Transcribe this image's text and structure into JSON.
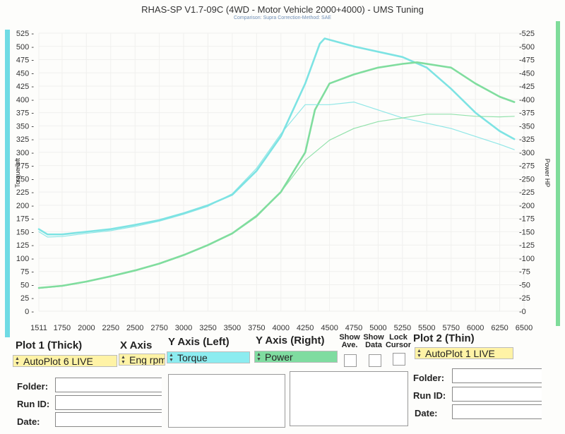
{
  "header": {
    "title": "RHAS-SP V1.7-09C  (4WD - Motor Vehicle 2000+4000) - UMS Tuning",
    "subtitle": "Comparison: Supra    Correction-Method: SAE"
  },
  "colors": {
    "torque": "#7de3e3",
    "power": "#80dd9e",
    "torque_sel": "#8cecf0",
    "power_sel": "#7fdca0",
    "autoplot_sel": "#fff3a6"
  },
  "chart_data": {
    "type": "line",
    "title": "RHAS-SP V1.7-09C  (4WD - Motor Vehicle 2000+4000) - UMS Tuning",
    "xlabel": "",
    "ylabel": "Torque lbft",
    "y2label": "Power HP",
    "xlim": [
      1511,
      6500
    ],
    "ylim": [
      0,
      525
    ],
    "y2lim": [
      0,
      525
    ],
    "x_ticks": [
      "1511",
      "1750",
      "2000",
      "2250",
      "2500",
      "2750",
      "3000",
      "3250",
      "3500",
      "3750",
      "4000",
      "4250",
      "4500",
      "4750",
      "5000",
      "5250",
      "5500",
      "5750",
      "6000",
      "6250",
      "6500"
    ],
    "y_ticks": [
      "0",
      "25",
      "50",
      "75",
      "100",
      "125",
      "150",
      "175",
      "200",
      "225",
      "250",
      "275",
      "300",
      "325",
      "350",
      "375",
      "400",
      "425",
      "450",
      "475",
      "500",
      "525"
    ],
    "y2_ticks": [
      "0",
      "25",
      "50",
      "75",
      "100",
      "125",
      "150",
      "175",
      "200",
      "225",
      "250",
      "275",
      "300",
      "325",
      "350",
      "375",
      "400",
      "425",
      "450",
      "475",
      "500",
      "525"
    ],
    "grid": true,
    "series": [
      {
        "name": "Torque",
        "axis": "left",
        "style": "thick",
        "x": [
          1511,
          1600,
          1750,
          2000,
          2250,
          2500,
          2750,
          3000,
          3250,
          3500,
          3750,
          4000,
          4250,
          4400,
          4450,
          4550,
          4750,
          5000,
          5250,
          5500,
          5750,
          6000,
          6250,
          6400
        ],
        "y": [
          155,
          145,
          145,
          150,
          155,
          163,
          172,
          185,
          200,
          220,
          265,
          330,
          430,
          505,
          515,
          510,
          500,
          490,
          480,
          460,
          420,
          375,
          340,
          325
        ]
      },
      {
        "name": "Power",
        "axis": "right",
        "style": "thick",
        "x": [
          1511,
          1750,
          2000,
          2250,
          2500,
          2750,
          3000,
          3250,
          3500,
          3750,
          4000,
          4250,
          4350,
          4500,
          4750,
          5000,
          5250,
          5400,
          5750,
          6000,
          6250,
          6400
        ],
        "y": [
          44,
          48,
          56,
          66,
          77,
          90,
          106,
          125,
          147,
          180,
          225,
          300,
          380,
          430,
          447,
          460,
          467,
          470,
          460,
          430,
          405,
          395
        ]
      },
      {
        "name": "Torque",
        "axis": "left",
        "style": "thin",
        "x": [
          1511,
          1600,
          1750,
          2000,
          2250,
          2500,
          2750,
          3000,
          3250,
          3500,
          3750,
          4000,
          4250,
          4500,
          4750,
          5000,
          5250,
          5500,
          5750,
          6000,
          6250,
          6400
        ],
        "y": [
          150,
          140,
          141,
          147,
          152,
          160,
          170,
          183,
          198,
          222,
          270,
          335,
          390,
          390,
          395,
          380,
          365,
          355,
          345,
          330,
          315,
          305
        ]
      },
      {
        "name": "Power",
        "axis": "right",
        "style": "thin",
        "x": [
          1511,
          1750,
          2000,
          2250,
          2500,
          2750,
          3000,
          3250,
          3500,
          3750,
          4000,
          4250,
          4500,
          4750,
          5000,
          5250,
          5500,
          5750,
          6000,
          6250,
          6400
        ],
        "y": [
          43,
          47,
          55,
          65,
          76,
          89,
          105,
          124,
          146,
          178,
          225,
          285,
          323,
          345,
          358,
          365,
          372,
          372,
          368,
          367,
          368
        ]
      }
    ]
  },
  "panel": {
    "plot1_heading": "Plot 1 (Thick)",
    "plot1_value": "AutoPlot 6 LIVE",
    "xaxis_heading": "X Axis",
    "xaxis_value": "Eng rpm",
    "yleft_heading": "Y Axis (Left)",
    "yleft_value": "Torque",
    "yright_heading": "Y Axis (Right)",
    "yright_value": "Power",
    "show_ave_label": "Show Ave.",
    "show_data_label": "Show Data",
    "lock_cursor_label": "Lock Cursor",
    "plot2_heading": "Plot 2 (Thin)",
    "plot2_value": "AutoPlot 1 LIVE",
    "folder_label": "Folder:",
    "runid_label": "Run ID:",
    "date_label": "Date:"
  }
}
